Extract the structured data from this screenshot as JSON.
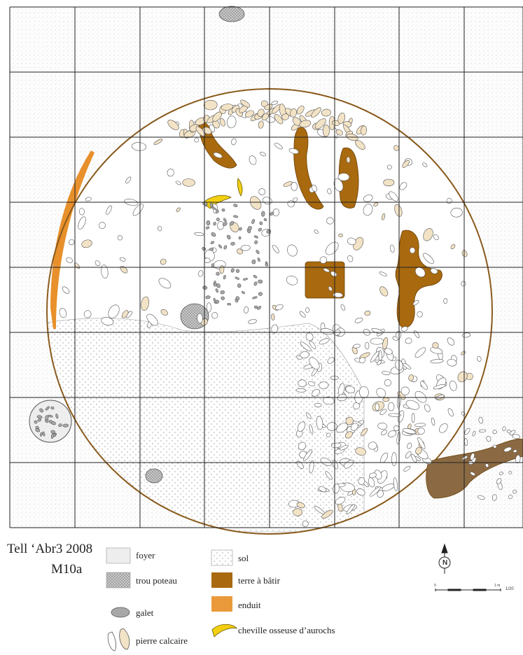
{
  "title": {
    "line1": "Tell ‘Abr3 2008",
    "line2": "M10a"
  },
  "legend": {
    "foyer": "foyer",
    "trou_poteau": "trou poteau",
    "galet": "galet",
    "pierre_calcaire": "pierre calcaire",
    "sol": "sol",
    "terre_a_batir": "terre à bâtir",
    "enduit": "enduit",
    "cheville": "cheville osseuse d’aurochs"
  },
  "north_label": "N",
  "scale": {
    "ratio": "1/20",
    "start": "0",
    "end": "1 m"
  },
  "colors": {
    "terre_a_batir": "#a8690f",
    "enduit": "#e8902c",
    "calcaire": "#f3e3c6",
    "galet": "#a8a8a8",
    "cheville": "#f2cf10",
    "outline": "#8a5a1c",
    "grid": "#222222",
    "outside_texture": "#dddddd"
  }
}
